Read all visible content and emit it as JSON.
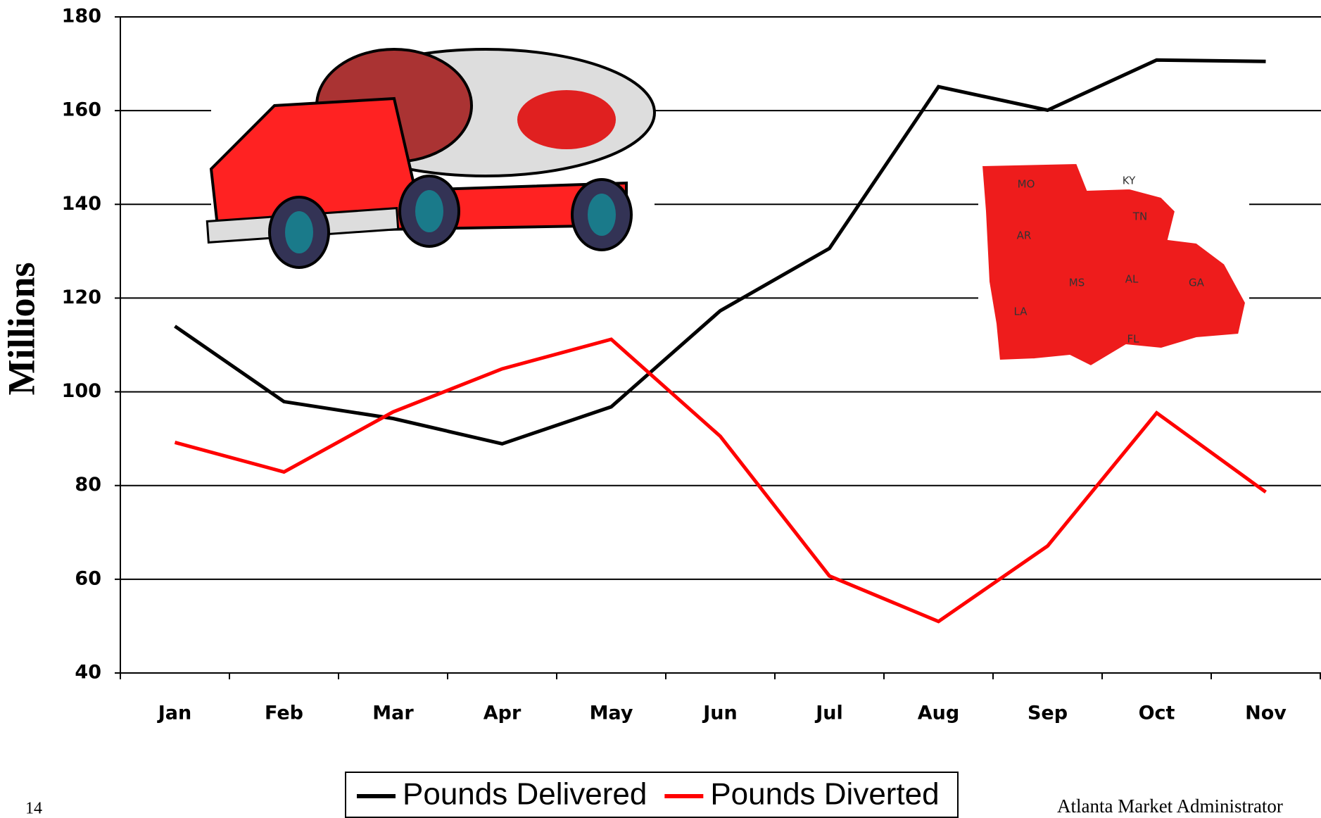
{
  "chart_data": {
    "type": "line",
    "y_label": "Millions",
    "categories": [
      "Jan",
      "Feb",
      "Mar",
      "Apr",
      "May",
      "Jun",
      "Jul",
      "Aug",
      "Sep",
      "Oct",
      "Nov"
    ],
    "series": [
      {
        "name": "Pounds Delivered",
        "color": "#000000",
        "values": [
          114.0,
          97.9,
          94.3,
          88.9,
          96.8,
          117.3,
          130.6,
          165.1,
          160.1,
          170.8,
          170.5
        ]
      },
      {
        "name": "Pounds Diverted",
        "color": "#ff0000",
        "values": [
          89.2,
          82.9,
          95.7,
          104.9,
          111.2,
          90.5,
          60.7,
          51.0,
          67.1,
          95.5,
          78.6
        ]
      }
    ],
    "ylim": [
      40,
      180
    ],
    "yticks": [
      40,
      60,
      80,
      100,
      120,
      140,
      160,
      180
    ],
    "grid": true,
    "legend": "bottom"
  },
  "map_labels": [
    "MO",
    "KY",
    "AR",
    "TN",
    "MS",
    "AL",
    "GA",
    "LA",
    "FL"
  ],
  "page_number": "14",
  "footer": "Atlanta Market Administrator"
}
